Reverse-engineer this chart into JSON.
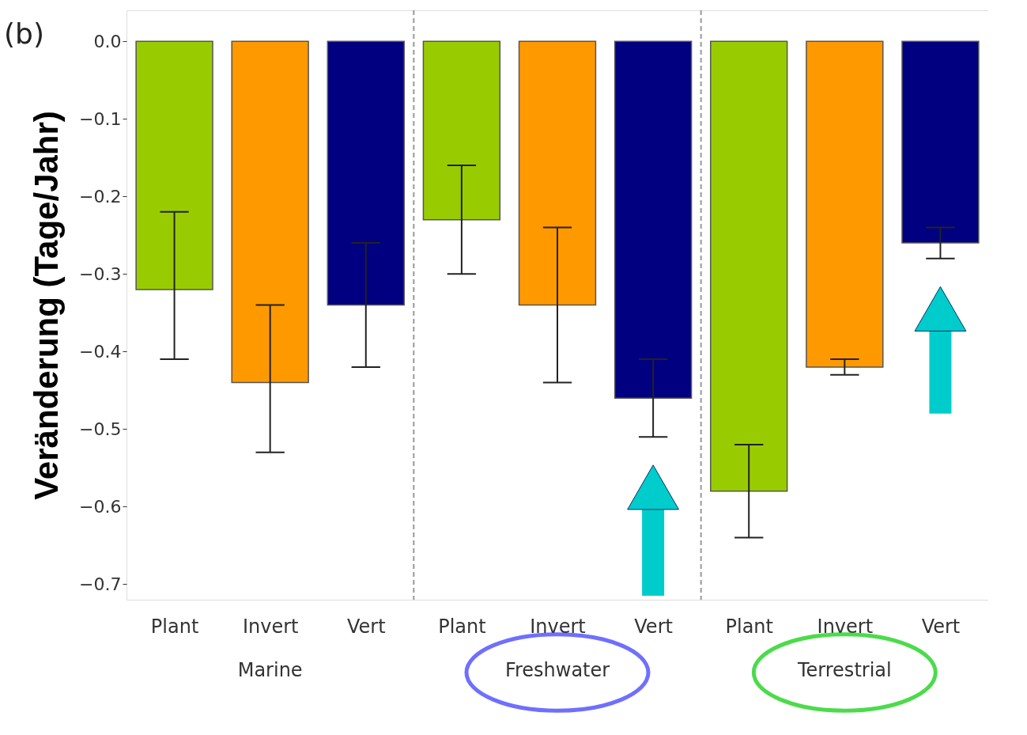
{
  "chart_data": {
    "type": "bar",
    "ylabel": "Veränderung (Tage/Jahr)",
    "annotations": [
      "(b)",
      "Marine",
      "Freshwater",
      "Terrestrial"
    ],
    "categories": [
      "Plant",
      "Invert",
      "Vert",
      "Plant",
      "Invert",
      "Vert",
      "Plant",
      "Invert",
      "Vert"
    ],
    "values": [
      -0.32,
      -0.44,
      -0.34,
      -0.23,
      -0.34,
      -0.46,
      -0.58,
      -0.42,
      -0.26
    ],
    "colors": [
      "#99cc00",
      "#ff9900",
      "#000080",
      "#99cc00",
      "#ff9900",
      "#000080",
      "#99cc00",
      "#ff9900",
      "#000080"
    ],
    "errors": [
      [
        -0.41,
        -0.22
      ],
      [
        -0.53,
        -0.34
      ],
      [
        -0.42,
        -0.26
      ],
      [
        -0.3,
        -0.16
      ],
      [
        -0.44,
        -0.24
      ],
      [
        -0.51,
        -0.41
      ],
      [
        -0.64,
        -0.52
      ],
      [
        -0.43,
        -0.41
      ],
      [
        -0.28,
        -0.24
      ]
    ],
    "ylim": [
      -0.72,
      0.04
    ],
    "yticks": [
      {
        "value": 0,
        "label": "0.0"
      },
      {
        "value": -0.1,
        "label": "−0.1"
      },
      {
        "value": -0.2,
        "label": "−0.2"
      },
      {
        "value": -0.3,
        "label": "−0.3"
      },
      {
        "value": -0.4,
        "label": "−0.4"
      },
      {
        "value": -0.5,
        "label": "−0.5"
      },
      {
        "value": -0.6,
        "label": "−0.6"
      },
      {
        "value": -0.7,
        "label": "−0.7"
      }
    ],
    "grid": false
  }
}
